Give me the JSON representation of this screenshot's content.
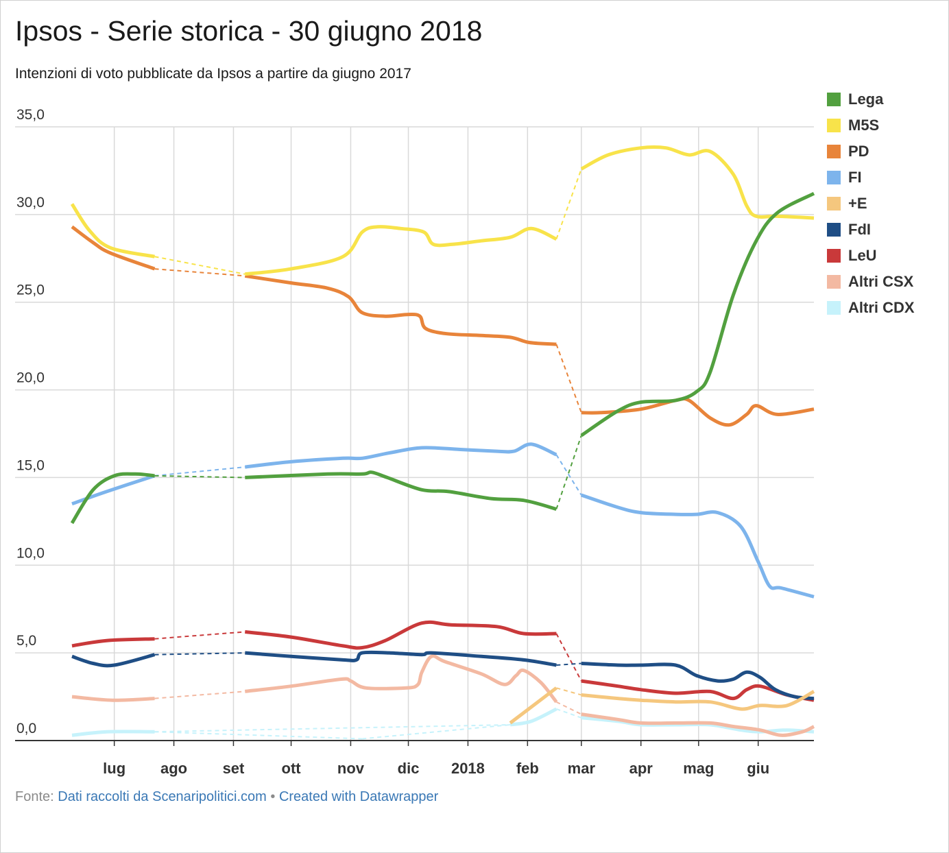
{
  "chart_data": {
    "type": "line",
    "title": "Ipsos - Serie storica - 30 giugno 2018",
    "subtitle": "Intenzioni di voto pubblicate da Ipsos a partire da giugno 2017",
    "xlabel": "",
    "ylabel": "",
    "ylim": [
      0,
      35
    ],
    "y_ticks": [
      "0,0",
      "5,0",
      "10,0",
      "15,0",
      "20,0",
      "25,0",
      "30,0",
      "35,0"
    ],
    "x_ticks": [
      "lug",
      "ago",
      "set",
      "ott",
      "nov",
      "dic",
      "2018",
      "feb",
      "mar",
      "apr",
      "mag",
      "giu"
    ],
    "x_tick_dates": [
      "2017-07-01",
      "2017-08-01",
      "2017-09-01",
      "2017-10-01",
      "2017-11-01",
      "2017-12-01",
      "2018-01-01",
      "2018-02-01",
      "2018-03-01",
      "2018-04-01",
      "2018-05-01",
      "2018-06-01"
    ],
    "x_range": [
      "2017-06-09",
      "2018-06-30"
    ],
    "grid": true,
    "legend_position": "right",
    "dashed_connectors": "between gaps in data (dashed segments)",
    "series": [
      {
        "name": "Lega",
        "color": "#52a03f",
        "segments": [
          [
            [
              "2017-06-09",
              12.4
            ],
            [
              "2017-06-20",
              14.3
            ],
            [
              "2017-07-01",
              15.1
            ],
            [
              "2017-07-12",
              15.2
            ],
            [
              "2017-07-22",
              15.1
            ]
          ],
          [
            [
              "2017-09-07",
              15.0
            ],
            [
              "2017-10-20",
              15.2
            ],
            [
              "2017-11-07",
              15.2
            ],
            [
              "2017-11-12",
              15.3
            ],
            [
              "2017-11-20",
              15.0
            ],
            [
              "2017-12-08",
              14.3
            ],
            [
              "2017-12-22",
              14.2
            ],
            [
              "2018-01-13",
              13.8
            ],
            [
              "2018-01-30",
              13.7
            ],
            [
              "2018-02-16",
              13.2
            ]
          ],
          [
            [
              "2018-03-01",
              17.4
            ],
            [
              "2018-03-20",
              18.8
            ],
            [
              "2018-04-01",
              19.3
            ],
            [
              "2018-04-19",
              19.4
            ],
            [
              "2018-04-30",
              19.9
            ],
            [
              "2018-05-07",
              21.0
            ],
            [
              "2018-05-19",
              25.4
            ],
            [
              "2018-05-31",
              28.5
            ],
            [
              "2018-06-11",
              30.1
            ],
            [
              "2018-06-30",
              31.2
            ]
          ]
        ]
      },
      {
        "name": "M5S",
        "color": "#f8e34a",
        "segments": [
          [
            [
              "2017-06-09",
              30.6
            ],
            [
              "2017-06-18",
              29.1
            ],
            [
              "2017-06-29",
              28.1
            ],
            [
              "2017-07-22",
              27.6
            ]
          ],
          [
            [
              "2017-09-07",
              26.6
            ],
            [
              "2017-10-01",
              26.9
            ],
            [
              "2017-10-28",
              27.6
            ],
            [
              "2017-11-07",
              29.0
            ],
            [
              "2017-11-15",
              29.3
            ],
            [
              "2017-11-27",
              29.2
            ],
            [
              "2017-12-09",
              29.0
            ],
            [
              "2017-12-14",
              28.3
            ],
            [
              "2017-12-24",
              28.3
            ],
            [
              "2018-01-08",
              28.5
            ],
            [
              "2018-01-23",
              28.7
            ],
            [
              "2018-02-03",
              29.2
            ],
            [
              "2018-02-16",
              28.6
            ]
          ],
          [
            [
              "2018-03-01",
              32.6
            ],
            [
              "2018-03-15",
              33.4
            ],
            [
              "2018-04-01",
              33.8
            ],
            [
              "2018-04-14",
              33.8
            ],
            [
              "2018-04-26",
              33.4
            ],
            [
              "2018-05-07",
              33.6
            ],
            [
              "2018-05-19",
              32.3
            ],
            [
              "2018-05-26",
              30.5
            ],
            [
              "2018-05-31",
              29.9
            ],
            [
              "2018-06-11",
              29.9
            ],
            [
              "2018-06-30",
              29.8
            ]
          ]
        ]
      },
      {
        "name": "PD",
        "color": "#e8843a",
        "segments": [
          [
            [
              "2017-06-09",
              29.3
            ],
            [
              "2017-06-20",
              28.4
            ],
            [
              "2017-06-29",
              27.8
            ],
            [
              "2017-07-22",
              26.9
            ]
          ],
          [
            [
              "2017-09-07",
              26.5
            ],
            [
              "2017-10-01",
              26.1
            ],
            [
              "2017-10-20",
              25.8
            ],
            [
              "2017-10-31",
              25.3
            ],
            [
              "2017-11-07",
              24.4
            ],
            [
              "2017-11-19",
              24.2
            ],
            [
              "2017-12-01",
              24.3
            ],
            [
              "2017-12-07",
              24.2
            ],
            [
              "2017-12-10",
              23.5
            ],
            [
              "2017-12-21",
              23.2
            ],
            [
              "2018-01-08",
              23.1
            ],
            [
              "2018-01-23",
              23.0
            ],
            [
              "2018-02-02",
              22.7
            ],
            [
              "2018-02-16",
              22.6
            ]
          ],
          [
            [
              "2018-03-01",
              18.7
            ],
            [
              "2018-03-11",
              18.7
            ],
            [
              "2018-04-01",
              18.9
            ],
            [
              "2018-04-19",
              19.4
            ],
            [
              "2018-04-26",
              19.4
            ],
            [
              "2018-05-07",
              18.4
            ],
            [
              "2018-05-17",
              18.0
            ],
            [
              "2018-05-26",
              18.6
            ],
            [
              "2018-05-31",
              19.1
            ],
            [
              "2018-06-11",
              18.6
            ],
            [
              "2018-06-30",
              18.9
            ]
          ]
        ]
      },
      {
        "name": "FI",
        "color": "#7db4ec",
        "segments": [
          [
            [
              "2017-06-09",
              13.5
            ],
            [
              "2017-06-27",
              14.2
            ],
            [
              "2017-07-22",
              15.1
            ]
          ],
          [
            [
              "2017-09-07",
              15.6
            ],
            [
              "2017-10-01",
              15.9
            ],
            [
              "2017-10-28",
              16.1
            ],
            [
              "2017-11-07",
              16.1
            ],
            [
              "2017-11-21",
              16.4
            ],
            [
              "2017-12-08",
              16.7
            ],
            [
              "2017-12-28",
              16.6
            ],
            [
              "2018-01-16",
              16.5
            ],
            [
              "2018-01-25",
              16.5
            ],
            [
              "2018-02-03",
              16.9
            ],
            [
              "2018-02-16",
              16.3
            ]
          ],
          [
            [
              "2018-03-01",
              14.0
            ],
            [
              "2018-03-20",
              13.3
            ],
            [
              "2018-04-01",
              13.0
            ],
            [
              "2018-04-19",
              12.9
            ],
            [
              "2018-04-30",
              12.9
            ],
            [
              "2018-05-11",
              13.0
            ],
            [
              "2018-05-23",
              12.2
            ],
            [
              "2018-06-01",
              10.2
            ],
            [
              "2018-06-07",
              8.8
            ],
            [
              "2018-06-13",
              8.7
            ],
            [
              "2018-06-30",
              8.2
            ]
          ]
        ]
      },
      {
        "name": "+E",
        "color": "#f5c77e",
        "segments": [
          [
            [
              "2018-01-23",
              1.0
            ],
            [
              "2018-02-16",
              3.0
            ]
          ],
          [
            [
              "2018-03-01",
              2.6
            ],
            [
              "2018-03-20",
              2.4
            ],
            [
              "2018-04-01",
              2.3
            ],
            [
              "2018-04-19",
              2.2
            ],
            [
              "2018-05-07",
              2.2
            ],
            [
              "2018-05-23",
              1.8
            ],
            [
              "2018-06-02",
              2.0
            ],
            [
              "2018-06-16",
              2.0
            ],
            [
              "2018-06-30",
              2.8
            ]
          ]
        ]
      },
      {
        "name": "FdI",
        "color": "#1f4e85",
        "segments": [
          [
            [
              "2017-06-09",
              4.8
            ],
            [
              "2017-06-20",
              4.4
            ],
            [
              "2017-07-01",
              4.3
            ],
            [
              "2017-07-22",
              4.9
            ]
          ],
          [
            [
              "2017-09-07",
              5.0
            ],
            [
              "2017-10-01",
              4.8
            ],
            [
              "2017-10-28",
              4.6
            ],
            [
              "2017-11-04",
              4.6
            ],
            [
              "2017-11-07",
              5.0
            ],
            [
              "2017-11-21",
              5.0
            ],
            [
              "2017-12-08",
              4.9
            ],
            [
              "2017-12-13",
              5.0
            ],
            [
              "2018-01-08",
              4.8
            ],
            [
              "2018-01-30",
              4.6
            ],
            [
              "2018-02-16",
              4.3
            ]
          ],
          [
            [
              "2018-03-01",
              4.4
            ],
            [
              "2018-03-20",
              4.3
            ],
            [
              "2018-04-01",
              4.3
            ],
            [
              "2018-04-19",
              4.3
            ],
            [
              "2018-04-30",
              3.7
            ],
            [
              "2018-05-11",
              3.4
            ],
            [
              "2018-05-19",
              3.5
            ],
            [
              "2018-05-26",
              3.9
            ],
            [
              "2018-06-02",
              3.6
            ],
            [
              "2018-06-10",
              2.9
            ],
            [
              "2018-06-20",
              2.5
            ],
            [
              "2018-06-30",
              2.4
            ]
          ]
        ]
      },
      {
        "name": "LeU",
        "color": "#c9393a",
        "segments": [
          [
            [
              "2017-06-09",
              5.4
            ],
            [
              "2017-06-27",
              5.7
            ],
            [
              "2017-07-22",
              5.8
            ]
          ],
          [
            [
              "2017-09-07",
              6.2
            ],
            [
              "2017-10-01",
              5.9
            ],
            [
              "2017-10-28",
              5.4
            ],
            [
              "2017-11-07",
              5.3
            ],
            [
              "2017-11-19",
              5.7
            ],
            [
              "2017-12-08",
              6.7
            ],
            [
              "2017-12-23",
              6.6
            ],
            [
              "2018-01-16",
              6.5
            ],
            [
              "2018-01-30",
              6.1
            ],
            [
              "2018-02-16",
              6.1
            ]
          ],
          [
            [
              "2018-03-01",
              3.4
            ],
            [
              "2018-03-20",
              3.1
            ],
            [
              "2018-04-01",
              2.9
            ],
            [
              "2018-04-19",
              2.7
            ],
            [
              "2018-05-07",
              2.8
            ],
            [
              "2018-05-19",
              2.4
            ],
            [
              "2018-05-26",
              2.9
            ],
            [
              "2018-06-02",
              3.1
            ],
            [
              "2018-06-16",
              2.6
            ],
            [
              "2018-06-30",
              2.3
            ]
          ]
        ]
      },
      {
        "name": "Altri CSX",
        "color": "#f3b9a2",
        "segments": [
          [
            [
              "2017-06-09",
              2.5
            ],
            [
              "2017-06-30",
              2.3
            ],
            [
              "2017-07-22",
              2.4
            ]
          ],
          [
            [
              "2017-09-07",
              2.8
            ],
            [
              "2017-10-01",
              3.1
            ],
            [
              "2017-10-27",
              3.5
            ],
            [
              "2017-11-01",
              3.4
            ],
            [
              "2017-11-09",
              3.0
            ],
            [
              "2017-11-30",
              3.0
            ],
            [
              "2017-12-06",
              3.2
            ],
            [
              "2017-12-08",
              3.9
            ],
            [
              "2017-12-13",
              4.8
            ],
            [
              "2017-12-20",
              4.5
            ],
            [
              "2018-01-08",
              3.8
            ],
            [
              "2018-01-20",
              3.2
            ],
            [
              "2018-01-26",
              3.7
            ],
            [
              "2018-01-30",
              4.0
            ],
            [
              "2018-02-08",
              3.3
            ],
            [
              "2018-02-16",
              2.2
            ]
          ],
          [
            [
              "2018-03-01",
              1.5
            ],
            [
              "2018-03-20",
              1.2
            ],
            [
              "2018-04-01",
              1.0
            ],
            [
              "2018-04-19",
              1.0
            ],
            [
              "2018-05-07",
              1.0
            ],
            [
              "2018-05-19",
              0.8
            ],
            [
              "2018-06-02",
              0.6
            ],
            [
              "2018-06-13",
              0.3
            ],
            [
              "2018-06-24",
              0.5
            ],
            [
              "2018-06-30",
              0.8
            ]
          ]
        ]
      },
      {
        "name": "Altri CDX",
        "color": "#c6f2fb",
        "segments": [
          [
            [
              "2017-06-09",
              0.3
            ],
            [
              "2017-06-27",
              0.5
            ],
            [
              "2017-07-22",
              0.5
            ]
          ],
          [
            [
              "2018-01-23",
              0.9
            ],
            [
              "2018-02-03",
              1.1
            ],
            [
              "2018-02-16",
              1.8
            ]
          ],
          [
            [
              "2018-03-01",
              1.3
            ],
            [
              "2018-03-20",
              1.1
            ],
            [
              "2018-04-01",
              0.9
            ],
            [
              "2018-04-19",
              0.9
            ],
            [
              "2018-05-07",
              0.9
            ],
            [
              "2018-05-23",
              0.6
            ],
            [
              "2018-06-02",
              0.5
            ],
            [
              "2018-06-16",
              0.6
            ],
            [
              "2018-06-30",
              0.5
            ]
          ]
        ]
      }
    ],
    "dashed_bridges": [
      {
        "series": "Altri CDX",
        "from": [
          "2017-07-22",
          0.5
        ],
        "to": [
          "2017-11-07",
          0.1
        ]
      },
      {
        "series": "Altri CDX",
        "from": [
          "2017-11-07",
          0.1
        ],
        "to": [
          "2018-01-23",
          0.9
        ]
      }
    ]
  },
  "footer": {
    "prefix": "Fonte: ",
    "source_link": "Dati raccolti da Scenaripolitici.com",
    "separator": " • ",
    "credit_link": "Created with Datawrapper"
  }
}
